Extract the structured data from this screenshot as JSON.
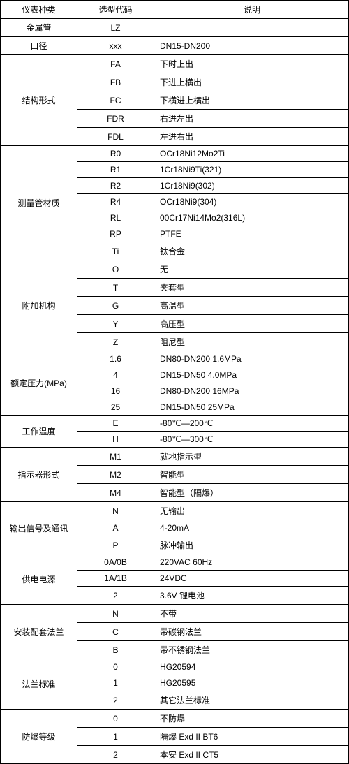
{
  "colors": {
    "border": "#000000",
    "bg": "#ffffff",
    "text": "#000000"
  },
  "header": {
    "c1": "仪表种类",
    "c2": "选型代码",
    "c3": "说明"
  },
  "simpleRows": [
    {
      "c1": "金属管",
      "c2": "LZ",
      "c3": ""
    },
    {
      "c1": "口径",
      "c2": "xxx",
      "c3": "DN15-DN200"
    }
  ],
  "groups": [
    {
      "label": "结构形式",
      "rows": [
        {
          "code": "FA",
          "desc": "下时上出"
        },
        {
          "code": "FB",
          "desc": "下进上横出"
        },
        {
          "code": "FC",
          "desc": "下横进上横出"
        },
        {
          "code": "FDR",
          "desc": "右进左出"
        },
        {
          "code": "FDL",
          "desc": "左进右出"
        }
      ]
    },
    {
      "label": "测量管材质",
      "rows": [
        {
          "code": "R0",
          "desc": "OCr18Ni12Mo2Ti"
        },
        {
          "code": "R1",
          "desc": "1Cr18Ni9Ti(321)"
        },
        {
          "code": "R2",
          "desc": "1Cr18Ni9(302)"
        },
        {
          "code": "R4",
          "desc": "OCr18Ni9(304)"
        },
        {
          "code": "RL",
          "desc": "00Cr17Ni14Mo2(316L)"
        },
        {
          "code": "RP",
          "desc": "PTFE"
        },
        {
          "code": "Ti",
          "desc": "钛合金"
        }
      ]
    },
    {
      "label": "附加机构",
      "rows": [
        {
          "code": "O",
          "desc": "无"
        },
        {
          "code": "T",
          "desc": "夹套型"
        },
        {
          "code": "G",
          "desc": "高温型"
        },
        {
          "code": "Y",
          "desc": "高压型"
        },
        {
          "code": "Z",
          "desc": "阻尼型"
        }
      ]
    },
    {
      "label": "额定压力(MPa)",
      "rows": [
        {
          "code": "1.6",
          "desc": "DN80-DN200  1.6MPa"
        },
        {
          "code": "4",
          "desc": "DN15-DN50   4.0MPa"
        },
        {
          "code": "16",
          "desc": "DN80-DN200  16MPa"
        },
        {
          "code": "25",
          "desc": "DN15-DN50   25MPa"
        }
      ]
    },
    {
      "label": "工作温度",
      "rows": [
        {
          "code": "E",
          "desc": "-80℃—200℃"
        },
        {
          "code": "H",
          "desc": "-80℃—300℃"
        }
      ]
    },
    {
      "label": "指示器形式",
      "rows": [
        {
          "code": "M1",
          "desc": "就地指示型"
        },
        {
          "code": "M2",
          "desc": "智能型"
        },
        {
          "code": "M4",
          "desc": "智能型（隔爆）"
        }
      ]
    },
    {
      "label": "输出信号及通讯",
      "rows": [
        {
          "code": "N",
          "desc": "无输出"
        },
        {
          "code": "A",
          "desc": "4-20mA"
        },
        {
          "code": "P",
          "desc": "脉冲输出"
        }
      ]
    },
    {
      "label": "供电电源",
      "rows": [
        {
          "code": "0A/0B",
          "desc": "220VAC     60Hz"
        },
        {
          "code": "1A/1B",
          "desc": "24VDC"
        },
        {
          "code": "2",
          "desc": "3.6V 锂电池"
        }
      ]
    },
    {
      "label": "安装配套法兰",
      "rows": [
        {
          "code": "N",
          "desc": "不带"
        },
        {
          "code": "C",
          "desc": "带碳钢法兰"
        },
        {
          "code": "B",
          "desc": "带不锈钢法兰"
        }
      ]
    },
    {
      "label": "法兰标准",
      "rows": [
        {
          "code": "0",
          "desc": "HG20594"
        },
        {
          "code": "1",
          "desc": "HG20595"
        },
        {
          "code": "2",
          "desc": "其它法兰标准"
        }
      ]
    },
    {
      "label": "防爆等级",
      "rows": [
        {
          "code": "0",
          "desc": "不防爆"
        },
        {
          "code": "1",
          "desc": "隔爆  Exd II BT6"
        },
        {
          "code": "2",
          "desc": "本安  Exd II CT5"
        }
      ]
    }
  ]
}
